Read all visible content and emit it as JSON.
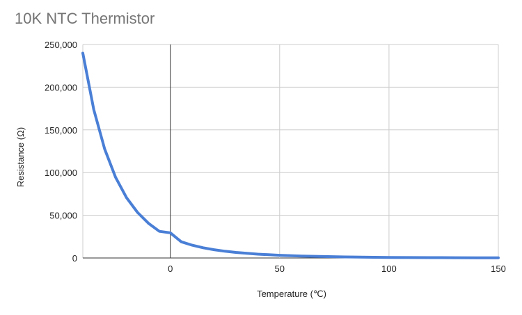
{
  "chart_data": {
    "type": "line",
    "title": "10K NTC Thermistor",
    "xlabel": "Temperature (℃)",
    "ylabel": "Resistance (Ω)",
    "xlim": [
      -40,
      150
    ],
    "ylim": [
      0,
      250000
    ],
    "x_ticks": [
      "0",
      "50",
      "100",
      "150"
    ],
    "y_ticks": [
      "0",
      "50,000",
      "100,000",
      "150,000",
      "200,000",
      "250,000"
    ],
    "grid": true,
    "legend": "none",
    "line_color": "#4a7fd6",
    "series": [
      {
        "x": [
          -40,
          -35,
          -30,
          -25,
          -20,
          -15,
          -10,
          -5,
          0,
          5,
          10,
          15,
          20,
          25,
          30,
          40,
          50,
          60,
          70,
          80,
          90,
          100,
          110,
          120,
          130,
          140,
          150
        ],
        "values": [
          239800,
          173900,
          127500,
          94400,
          70600,
          53300,
          40600,
          31200,
          29500,
          19000,
          15000,
          12000,
          9700,
          7900,
          6500,
          4500,
          3200,
          2300,
          1700,
          1200,
          900,
          680,
          520,
          400,
          320,
          250,
          200
        ]
      }
    ]
  }
}
